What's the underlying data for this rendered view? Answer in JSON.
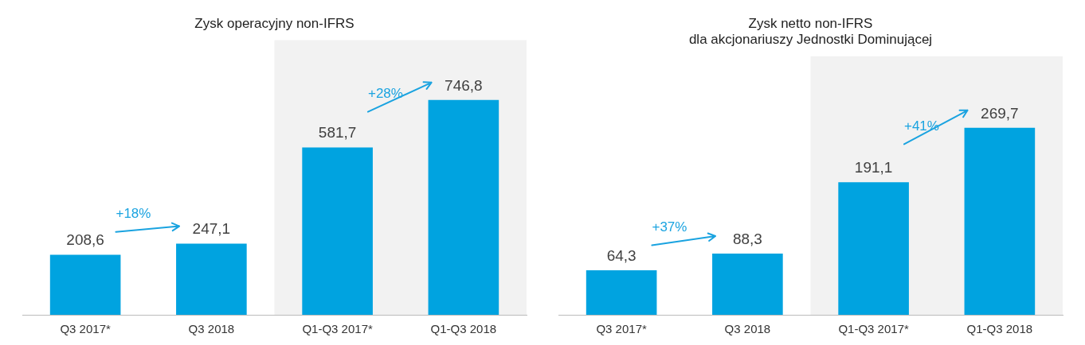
{
  "chart_data": [
    {
      "type": "bar",
      "title": "Zysk operacyjny non-IFRS",
      "categories": [
        "Q3 2017*",
        "Q3 2018",
        "Q1-Q3 2017*",
        "Q1-Q3 2018"
      ],
      "values": [
        208.6,
        247.1,
        581.7,
        746.8
      ],
      "value_labels": [
        "208,6",
        "247,1",
        "581,7",
        "746,8"
      ],
      "color": "#00a3e0",
      "bands": [
        {
          "axis": "x",
          "from": "Q1-Q3 2017*",
          "to": "Q1-Q3 2018",
          "color": "#f2f2f2"
        }
      ],
      "annotations": [
        "+18%",
        "+28%"
      ],
      "grid": false,
      "legend": false
    },
    {
      "type": "bar",
      "title": "Zysk netto non-IFRS\ndla akcjonariuszy Jednostki Dominującej",
      "categories": [
        "Q3 2017*",
        "Q3 2018",
        "Q1-Q3 2017*",
        "Q1-Q3 2018"
      ],
      "values": [
        64.3,
        88.3,
        191.1,
        269.7
      ],
      "value_labels": [
        "64,3",
        "88,3",
        "191,1",
        "269,7"
      ],
      "color": "#00a3e0",
      "bands": [
        {
          "axis": "x",
          "from": "Q1-Q3 2017*",
          "to": "Q1-Q3 2018",
          "color": "#f2f2f2"
        }
      ],
      "annotations": [
        "+37%",
        "+41%"
      ],
      "grid": false,
      "legend": false
    }
  ]
}
